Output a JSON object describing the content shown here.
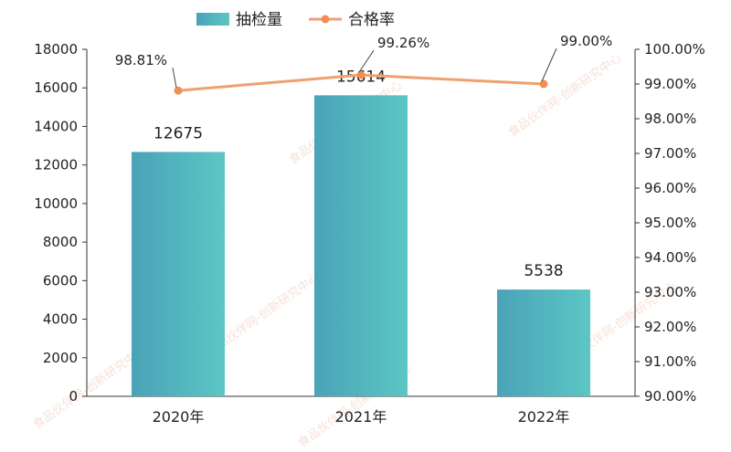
{
  "chart_data": {
    "type": "bar+line",
    "categories": [
      "2020年",
      "2021年",
      "2022年"
    ],
    "series": [
      {
        "name": "抽检量",
        "type": "bar",
        "axis": "left",
        "values": [
          12675,
          15614,
          5538
        ],
        "color": "#4fb5c0"
      },
      {
        "name": "合格率",
        "type": "line",
        "axis": "right",
        "values": [
          98.81,
          99.26,
          99.0
        ],
        "labels": [
          "98.81%",
          "99.26%",
          "99.00%"
        ],
        "color": "#f0a070"
      }
    ],
    "y_left": {
      "min": 0,
      "max": 18000,
      "step": 2000,
      "ticks": [
        "0",
        "2000",
        "4000",
        "6000",
        "8000",
        "10000",
        "12000",
        "14000",
        "16000",
        "18000"
      ]
    },
    "y_right": {
      "min": 90,
      "max": 100,
      "step": 1,
      "ticks": [
        "90.00%",
        "91.00%",
        "92.00%",
        "93.00%",
        "94.00%",
        "95.00%",
        "96.00%",
        "97.00%",
        "98.00%",
        "99.00%",
        "100.00%"
      ]
    },
    "legend_position": "top-center",
    "grid": false
  },
  "watermark": "食品伙伴网-创新研究中心"
}
